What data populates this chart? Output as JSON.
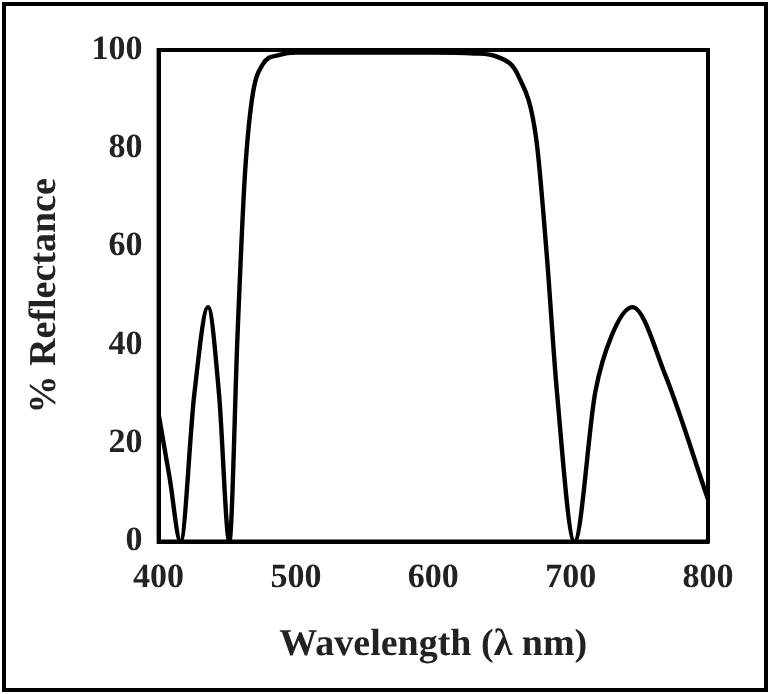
{
  "chart_data": {
    "type": "line",
    "xlabel": "Wavelength (λ nm)",
    "ylabel": "% Reflectance",
    "x": [
      400,
      408,
      416,
      426,
      436,
      444,
      451.5,
      457.6,
      462.7,
      468,
      475.6,
      488,
      500,
      550,
      600,
      630,
      646.7,
      662,
      674.9,
      682.5,
      690,
      702.8,
      718,
      730,
      745,
      769,
      800
    ],
    "series": [
      {
        "color": "#000000",
        "values": [
          26,
          13,
          0,
          30,
          47.7,
          30,
          0,
          43,
          74,
          90,
          97,
          99,
          99.5,
          99.5,
          99.5,
          99.3,
          98.6,
          94.7,
          82,
          58.7,
          30.5,
          0,
          30.5,
          42,
          47.7,
          33.8,
          8.6
        ]
      }
    ],
    "xlim": [
      400,
      800
    ],
    "xticks": [
      400,
      500,
      600,
      700,
      800
    ],
    "ylim": [
      0,
      100
    ],
    "yticks": [
      0,
      20,
      40,
      60,
      80,
      100
    ],
    "grid": false,
    "legend": false,
    "marker": "none",
    "line_style": "solid"
  }
}
